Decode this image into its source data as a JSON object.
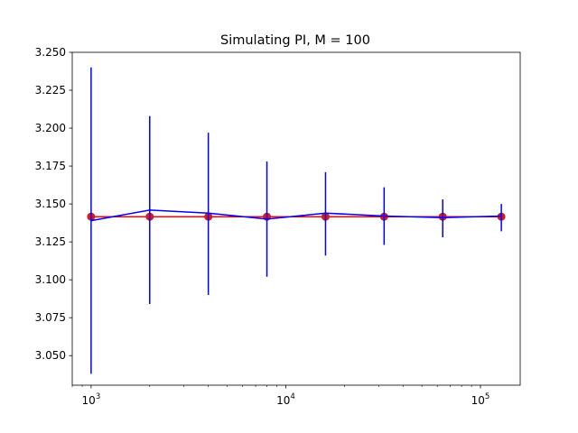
{
  "chart_data": {
    "type": "line",
    "title": "Simulating PI, M = 100",
    "xlabel": "",
    "ylabel": "",
    "xscale": "log",
    "xlim": [
      800,
      160000
    ],
    "ylim": [
      3.0305,
      3.25
    ],
    "grid": false,
    "x": [
      1000,
      2000,
      4000,
      8000,
      16000,
      32000,
      64000,
      128000
    ],
    "x_tick_labels": [
      {
        "base": "10",
        "exp": "3",
        "value": 1000
      },
      {
        "base": "10",
        "exp": "4",
        "value": 10000
      },
      {
        "base": "10",
        "exp": "5",
        "value": 100000
      }
    ],
    "y_ticks": [
      3.05,
      3.075,
      3.1,
      3.125,
      3.15,
      3.175,
      3.2,
      3.225,
      3.25
    ],
    "y_tick_labels": [
      "3.050",
      "3.075",
      "3.100",
      "3.125",
      "3.150",
      "3.175",
      "3.200",
      "3.225",
      "3.250"
    ],
    "series": [
      {
        "role": "reference",
        "color": "#ff0000",
        "marker_color": "#d7191c",
        "values": [
          3.1416,
          3.1416,
          3.1416,
          3.1416,
          3.1416,
          3.1416,
          3.1416,
          3.1416
        ]
      },
      {
        "role": "estimate",
        "color": "#0000ff",
        "values": [
          3.139,
          3.146,
          3.144,
          3.14,
          3.144,
          3.142,
          3.141,
          3.142
        ],
        "error_low": [
          3.038,
          3.084,
          3.09,
          3.102,
          3.116,
          3.123,
          3.128,
          3.132
        ],
        "error_high": [
          3.24,
          3.208,
          3.197,
          3.178,
          3.171,
          3.161,
          3.153,
          3.15
        ]
      }
    ]
  }
}
